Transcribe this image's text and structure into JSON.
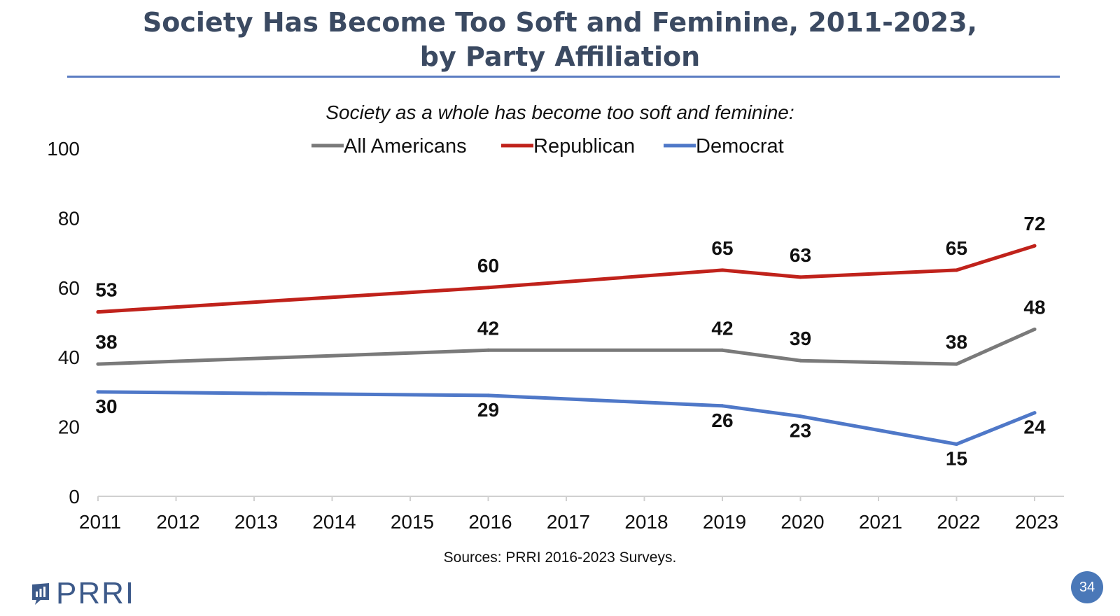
{
  "header": {
    "title_line1": "Society Has Become Too Soft and Feminine, 2011-2023,",
    "title_line2": "by Party Affiliation"
  },
  "footer": {
    "sources": "Sources: PRRI 2016-2023 Surveys.",
    "logo_text": "PRRI",
    "page_number": "34"
  },
  "colors": {
    "title": "#3b4a62",
    "rule": "#5b7cc2",
    "all_americans": "#7a7a7a",
    "republican": "#c0221b",
    "democrat": "#4f78c8"
  },
  "chart_data": {
    "type": "line",
    "title": "Society Has Become Too Soft and Feminine, 2011-2023, by Party Affiliation",
    "subtitle": "Society as a whole has become too soft and feminine:",
    "xlabel": "",
    "ylabel": "",
    "x": [
      2011,
      2012,
      2013,
      2014,
      2015,
      2016,
      2017,
      2018,
      2019,
      2020,
      2021,
      2022,
      2023
    ],
    "ylim": [
      0,
      100
    ],
    "yticks": [
      0,
      20,
      40,
      60,
      80,
      100
    ],
    "grid": false,
    "legend": "top-center",
    "series": [
      {
        "name": "All Americans",
        "color": "#7a7a7a",
        "points": [
          [
            2011,
            38
          ],
          [
            2016,
            42
          ],
          [
            2019,
            42
          ],
          [
            2020,
            39
          ],
          [
            2022,
            38
          ],
          [
            2023,
            48
          ]
        ],
        "label_position": "above"
      },
      {
        "name": "Republican",
        "color": "#c0221b",
        "points": [
          [
            2011,
            53
          ],
          [
            2016,
            60
          ],
          [
            2019,
            65
          ],
          [
            2020,
            63
          ],
          [
            2022,
            65
          ],
          [
            2023,
            72
          ]
        ],
        "label_position": "above"
      },
      {
        "name": "Democrat",
        "color": "#4f78c8",
        "points": [
          [
            2011,
            30
          ],
          [
            2016,
            29
          ],
          [
            2019,
            26
          ],
          [
            2020,
            23
          ],
          [
            2022,
            15
          ],
          [
            2023,
            24
          ]
        ],
        "label_position": "below"
      }
    ]
  }
}
